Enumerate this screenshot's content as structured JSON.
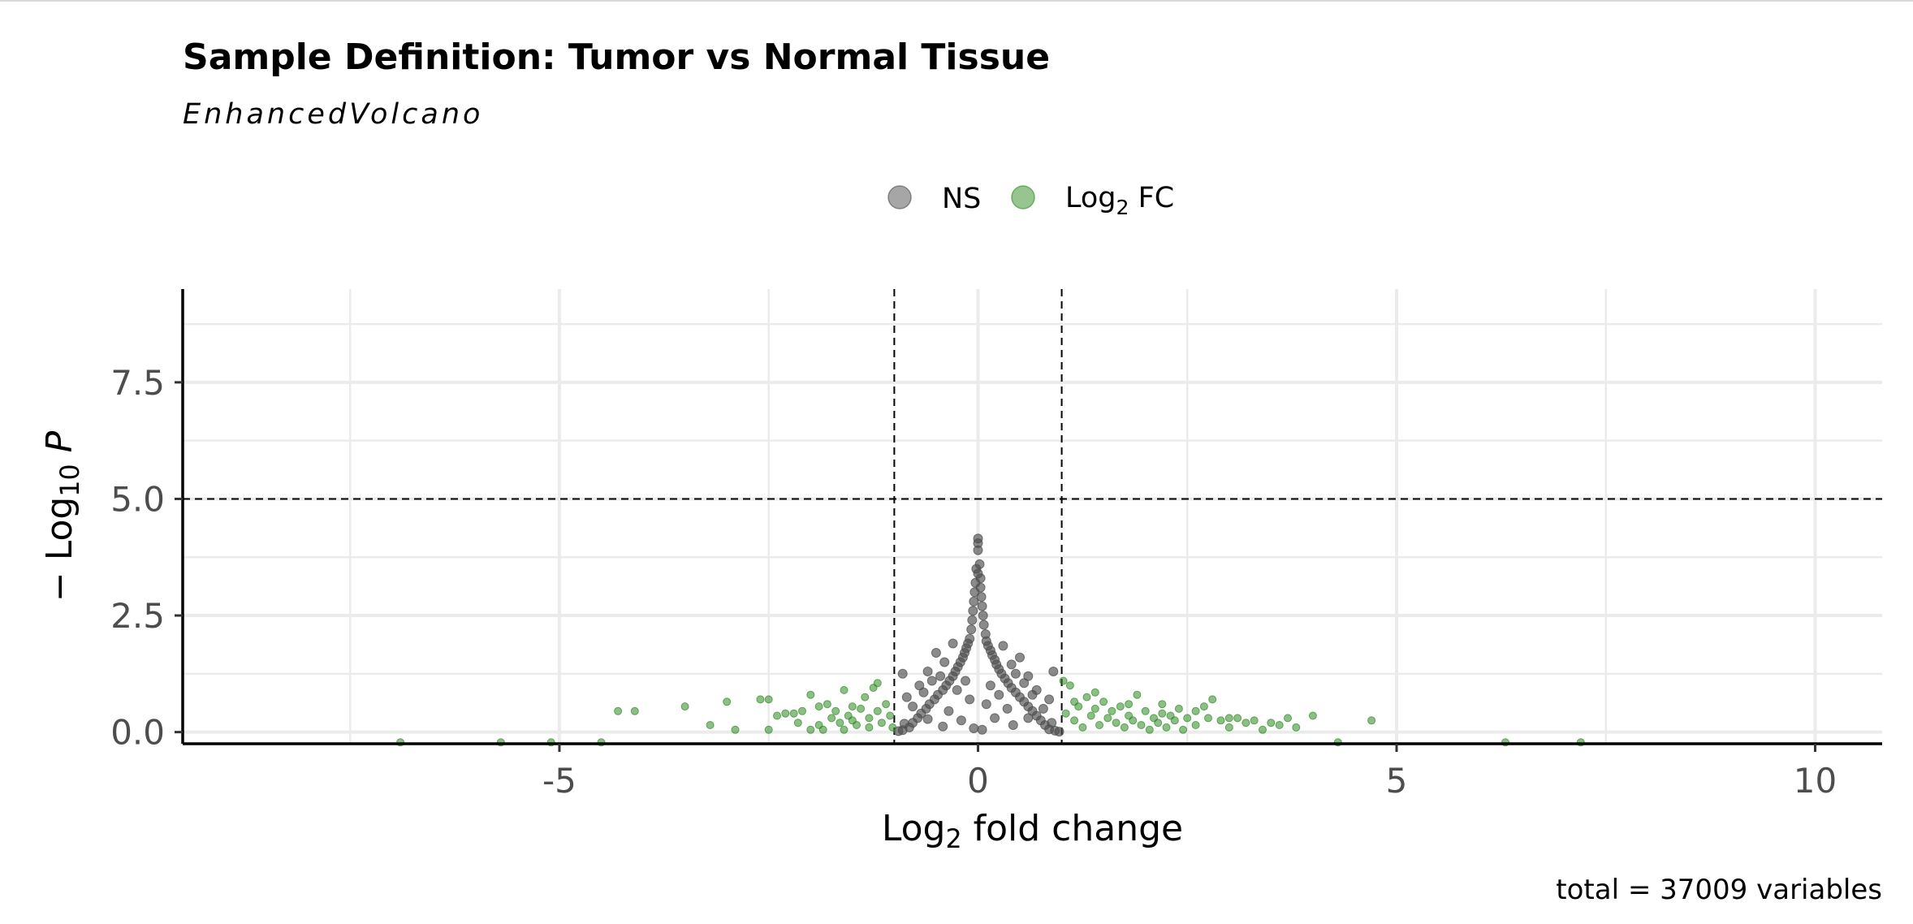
{
  "chart_data": {
    "type": "scatter",
    "title": "Sample Definition: Tumor vs Normal Tissue",
    "subtitle": "EnhancedVolcano",
    "caption": "total = 37009 variables",
    "xlabel": {
      "prefix": "Log",
      "sub": "2",
      "suffix": " fold change"
    },
    "ylabel": {
      "prefix": "− Log",
      "sub": "10",
      "suffix": " P"
    },
    "xlim": [
      -9.5,
      10.8
    ],
    "ylim": [
      -0.25,
      9.5
    ],
    "x_ticks": [
      {
        "value": -5,
        "label": "-5"
      },
      {
        "value": 0,
        "label": "0"
      },
      {
        "value": 5,
        "label": "5"
      },
      {
        "value": 10,
        "label": "10"
      }
    ],
    "y_ticks": [
      {
        "value": 0,
        "label": "0.0"
      },
      {
        "value": 2.5,
        "label": "2.5"
      },
      {
        "value": 5,
        "label": "5.0"
      },
      {
        "value": 7.5,
        "label": "7.5"
      }
    ],
    "grid": true,
    "fc_cutoff": 1,
    "p_cutoff": 5,
    "legend": {
      "position": "top",
      "items": [
        {
          "key": "NS",
          "label": "NS",
          "color": "#4d4d4d"
        },
        {
          "key": "FC",
          "label": "Log",
          "sub": "2",
          "suffix": " FC",
          "color": "#2e8b22"
        }
      ]
    },
    "series": [
      {
        "name": "NS",
        "color": "#4d4d4d",
        "points": [
          [
            0,
            4.15
          ],
          [
            0,
            4.05
          ],
          [
            0,
            3.9
          ],
          [
            0.02,
            3.6
          ],
          [
            -0.02,
            3.5
          ],
          [
            0,
            3.4
          ],
          [
            0.03,
            3.3
          ],
          [
            -0.03,
            3.2
          ],
          [
            0.03,
            3.1
          ],
          [
            -0.04,
            3.0
          ],
          [
            0.04,
            2.9
          ],
          [
            -0.05,
            2.8
          ],
          [
            0.05,
            2.7
          ],
          [
            -0.06,
            2.6
          ],
          [
            0.06,
            2.5
          ],
          [
            -0.07,
            2.4
          ],
          [
            0.07,
            2.3
          ],
          [
            -0.08,
            2.2
          ],
          [
            0.09,
            2.1
          ],
          [
            -0.1,
            2.0
          ],
          [
            0.1,
            1.95
          ],
          [
            -0.12,
            1.9
          ],
          [
            0.12,
            1.85
          ],
          [
            -0.14,
            1.8
          ],
          [
            0.15,
            1.75
          ],
          [
            -0.16,
            1.7
          ],
          [
            0.17,
            1.65
          ],
          [
            -0.18,
            1.6
          ],
          [
            0.2,
            1.55
          ],
          [
            -0.21,
            1.5
          ],
          [
            0.22,
            1.45
          ],
          [
            -0.24,
            1.4
          ],
          [
            0.25,
            1.35
          ],
          [
            -0.27,
            1.3
          ],
          [
            0.28,
            1.25
          ],
          [
            -0.3,
            1.2
          ],
          [
            0.32,
            1.15
          ],
          [
            -0.34,
            1.1
          ],
          [
            0.36,
            1.05
          ],
          [
            -0.38,
            1.0
          ],
          [
            0.4,
            0.95
          ],
          [
            -0.42,
            0.9
          ],
          [
            0.45,
            0.85
          ],
          [
            -0.48,
            0.8
          ],
          [
            0.5,
            0.75
          ],
          [
            -0.52,
            0.7
          ],
          [
            0.55,
            0.65
          ],
          [
            -0.58,
            0.6
          ],
          [
            0.6,
            0.55
          ],
          [
            -0.62,
            0.5
          ],
          [
            0.65,
            0.45
          ],
          [
            -0.68,
            0.4
          ],
          [
            0.7,
            0.35
          ],
          [
            -0.72,
            0.3
          ],
          [
            0.75,
            0.25
          ],
          [
            -0.78,
            0.2
          ],
          [
            0.8,
            0.15
          ],
          [
            -0.82,
            0.1
          ],
          [
            0.85,
            0.06
          ],
          [
            -0.9,
            0.04
          ],
          [
            0.92,
            0.03
          ],
          [
            -0.95,
            0.02
          ],
          [
            0.97,
            0.01
          ],
          [
            -0.5,
            1.7
          ],
          [
            0.5,
            1.6
          ],
          [
            -0.6,
            1.3
          ],
          [
            0.6,
            1.2
          ],
          [
            -0.7,
            1.0
          ],
          [
            0.7,
            0.9
          ],
          [
            -0.85,
            0.75
          ],
          [
            0.85,
            0.7
          ],
          [
            -0.3,
            1.9
          ],
          [
            0.3,
            1.85
          ],
          [
            -0.4,
            1.5
          ],
          [
            0.4,
            1.45
          ],
          [
            0.9,
            1.3
          ],
          [
            -0.9,
            1.25
          ],
          [
            0.55,
            1.05
          ],
          [
            -0.55,
            1.1
          ],
          [
            0.45,
            1.25
          ],
          [
            -0.45,
            1.2
          ],
          [
            0.65,
            0.8
          ],
          [
            -0.65,
            0.85
          ],
          [
            0.2,
            0.3
          ],
          [
            -0.2,
            0.25
          ],
          [
            0.35,
            0.5
          ],
          [
            -0.35,
            0.45
          ],
          [
            0.1,
            0.6
          ],
          [
            -0.1,
            0.7
          ],
          [
            0.15,
            1.0
          ],
          [
            -0.15,
            1.1
          ],
          [
            0.25,
            0.8
          ],
          [
            -0.25,
            0.9
          ],
          [
            0.78,
            0.5
          ],
          [
            -0.78,
            0.55
          ],
          [
            0.6,
            0.3
          ],
          [
            -0.6,
            0.28
          ],
          [
            0.88,
            0.2
          ],
          [
            -0.88,
            0.18
          ],
          [
            0.42,
            0.15
          ],
          [
            -0.42,
            0.12
          ],
          [
            0.05,
            0.05
          ],
          [
            -0.05,
            0.08
          ]
        ]
      },
      {
        "name": "Log2 FC",
        "color": "#2e8b22",
        "points": [
          [
            -6.9,
            -0.22
          ],
          [
            -5.7,
            -0.22
          ],
          [
            -5.1,
            -0.22
          ],
          [
            -4.5,
            -0.22
          ],
          [
            -4.3,
            0.45
          ],
          [
            -4.1,
            0.45
          ],
          [
            -3.5,
            0.55
          ],
          [
            -3.2,
            0.15
          ],
          [
            -3.0,
            0.65
          ],
          [
            -2.9,
            0.05
          ],
          [
            -2.6,
            0.7
          ],
          [
            -2.5,
            0.7
          ],
          [
            -2.5,
            0.05
          ],
          [
            -2.4,
            0.35
          ],
          [
            -2.3,
            0.4
          ],
          [
            -2.2,
            0.4
          ],
          [
            -2.1,
            0.45
          ],
          [
            -2.0,
            0.8
          ],
          [
            -2.0,
            0.05
          ],
          [
            -1.9,
            0.15
          ],
          [
            -1.85,
            0.05
          ],
          [
            -1.8,
            0.6
          ],
          [
            -1.75,
            0.3
          ],
          [
            -1.7,
            0.45
          ],
          [
            -1.65,
            0.2
          ],
          [
            -1.6,
            0.9
          ],
          [
            -1.55,
            0.35
          ],
          [
            -1.5,
            0.55
          ],
          [
            -1.45,
            0.15
          ],
          [
            -1.4,
            0.5
          ],
          [
            -1.35,
            0.75
          ],
          [
            -1.3,
            0.3
          ],
          [
            -1.25,
            0.95
          ],
          [
            -1.2,
            0.45
          ],
          [
            -1.15,
            0.2
          ],
          [
            -1.1,
            0.6
          ],
          [
            -1.05,
            0.35
          ],
          [
            -1.02,
            0.1
          ],
          [
            -1.5,
            0.25
          ],
          [
            -1.6,
            0.05
          ],
          [
            -1.3,
            0.1
          ],
          [
            -1.2,
            1.05
          ],
          [
            -1.9,
            0.55
          ],
          [
            -2.15,
            0.2
          ],
          [
            1.02,
            1.1
          ],
          [
            1.05,
            0.4
          ],
          [
            1.1,
            1.0
          ],
          [
            1.15,
            0.25
          ],
          [
            1.2,
            0.55
          ],
          [
            1.25,
            0.1
          ],
          [
            1.3,
            0.75
          ],
          [
            1.35,
            0.35
          ],
          [
            1.4,
            0.5
          ],
          [
            1.45,
            0.15
          ],
          [
            1.5,
            0.65
          ],
          [
            1.55,
            0.3
          ],
          [
            1.6,
            0.45
          ],
          [
            1.65,
            0.2
          ],
          [
            1.7,
            0.55
          ],
          [
            1.75,
            0.1
          ],
          [
            1.8,
            0.35
          ],
          [
            1.85,
            0.25
          ],
          [
            1.9,
            0.8
          ],
          [
            1.95,
            0.15
          ],
          [
            2.0,
            0.45
          ],
          [
            2.05,
            0.05
          ],
          [
            2.1,
            0.3
          ],
          [
            2.15,
            0.2
          ],
          [
            2.2,
            0.6
          ],
          [
            2.25,
            0.1
          ],
          [
            2.3,
            0.35
          ],
          [
            2.35,
            0.25
          ],
          [
            2.4,
            0.5
          ],
          [
            2.45,
            0.05
          ],
          [
            2.5,
            0.3
          ],
          [
            2.6,
            0.15
          ],
          [
            2.7,
            0.55
          ],
          [
            2.75,
            0.3
          ],
          [
            2.8,
            0.7
          ],
          [
            2.9,
            0.25
          ],
          [
            3.0,
            0.1
          ],
          [
            3.1,
            0.3
          ],
          [
            3.2,
            0.2
          ],
          [
            3.3,
            0.25
          ],
          [
            3.4,
            0.05
          ],
          [
            3.5,
            0.2
          ],
          [
            3.6,
            0.15
          ],
          [
            3.7,
            0.3
          ],
          [
            3.8,
            0.1
          ],
          [
            4.0,
            0.35
          ],
          [
            4.3,
            -0.22
          ],
          [
            4.7,
            0.25
          ],
          [
            6.3,
            -0.22
          ],
          [
            7.2,
            -0.22
          ],
          [
            1.4,
            0.85
          ],
          [
            1.8,
            0.6
          ],
          [
            2.2,
            0.4
          ],
          [
            2.6,
            0.45
          ],
          [
            3.0,
            0.3
          ],
          [
            1.15,
            0.65
          ]
        ]
      }
    ]
  }
}
